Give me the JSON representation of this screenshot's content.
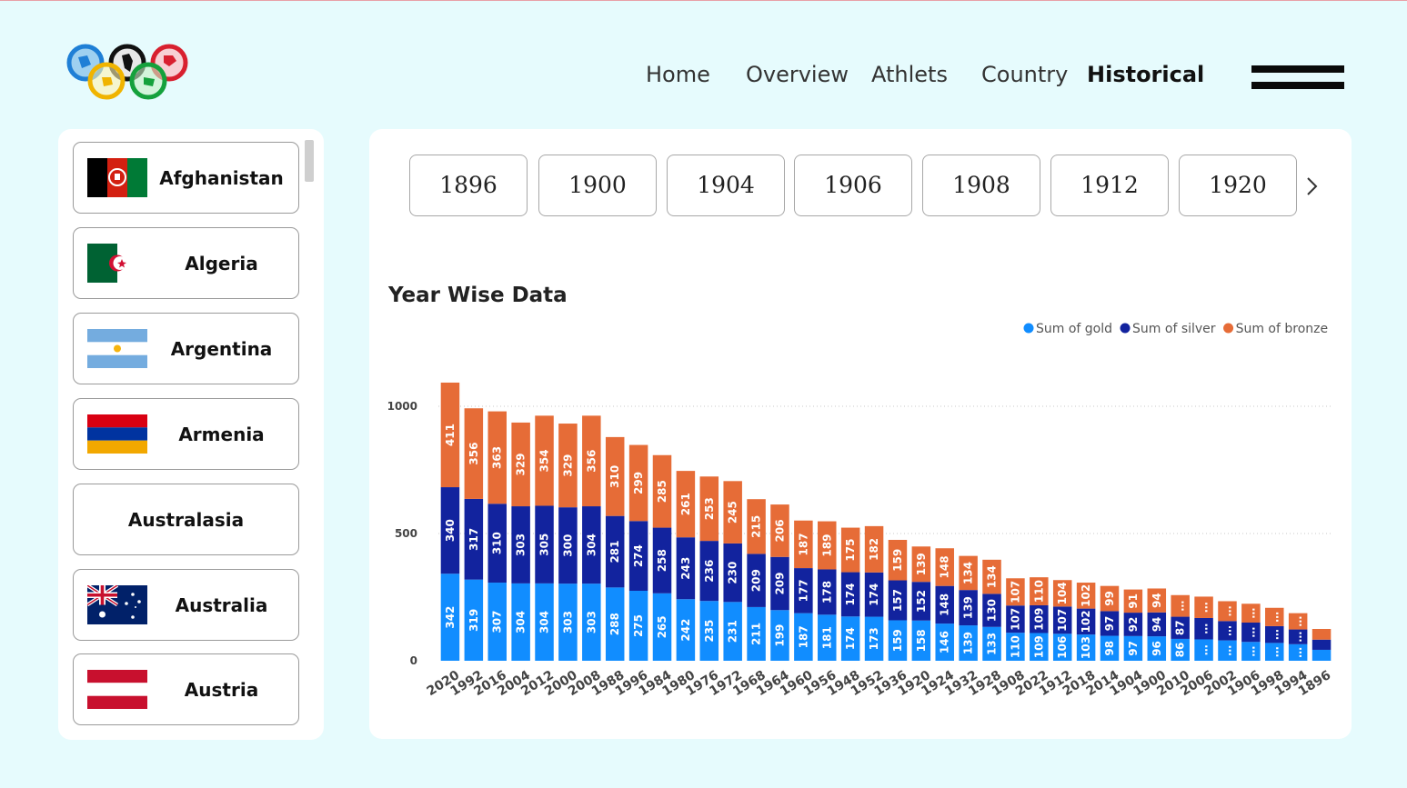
{
  "header": {
    "nav": [
      {
        "label": "Home",
        "active": false
      },
      {
        "label": "Overview",
        "active": false
      },
      {
        "label": "Athlets",
        "active": false
      },
      {
        "label": "Country",
        "active": false
      },
      {
        "label": "Historical",
        "active": true
      }
    ]
  },
  "countries": [
    {
      "name": "Afghanistan",
      "flag": "afghanistan-flag"
    },
    {
      "name": "Algeria",
      "flag": "algeria-flag"
    },
    {
      "name": "Argentina",
      "flag": "argentina-flag"
    },
    {
      "name": "Armenia",
      "flag": "armenia-flag"
    },
    {
      "name": "Australasia",
      "flag": ""
    },
    {
      "name": "Australia",
      "flag": "australia-flag"
    },
    {
      "name": "Austria",
      "flag": "austria-flag"
    }
  ],
  "year_slicer": [
    "1896",
    "1900",
    "1904",
    "1906",
    "1908",
    "1912",
    "1920"
  ],
  "chart_data": {
    "type": "bar",
    "stacked": true,
    "title": "Year Wise Data",
    "legend_position": "top-right",
    "categories": [
      "2020",
      "1992",
      "2016",
      "2004",
      "2012",
      "2000",
      "2008",
      "1988",
      "1996",
      "1984",
      "1980",
      "1976",
      "1972",
      "1968",
      "1964",
      "1960",
      "1956",
      "1948",
      "1952",
      "1936",
      "1920",
      "1924",
      "1932",
      "1928",
      "1908",
      "2022",
      "1912",
      "2018",
      "2014",
      "1904",
      "1900",
      "2010",
      "2006",
      "2002",
      "1906",
      "1998",
      "1994",
      "1896"
    ],
    "series": [
      {
        "name": "Sum of gold",
        "color": "#118dff",
        "values": [
          342,
          319,
          307,
          304,
          304,
          303,
          303,
          288,
          275,
          265,
          242,
          235,
          231,
          211,
          199,
          187,
          181,
          174,
          173,
          159,
          158,
          146,
          139,
          133,
          110,
          109,
          106,
          103,
          98,
          97,
          96,
          86,
          84,
          80,
          74,
          70,
          65,
          43
        ]
      },
      {
        "name": "Sum of silver",
        "color": "#12239e",
        "values": [
          340,
          317,
          310,
          303,
          305,
          300,
          304,
          281,
          274,
          258,
          243,
          236,
          230,
          209,
          209,
          177,
          178,
          174,
          174,
          157,
          152,
          148,
          139,
          130,
          107,
          109,
          107,
          102,
          97,
          92,
          94,
          87,
          84,
          76,
          76,
          66,
          58,
          40
        ]
      },
      {
        "name": "Sum of bronze",
        "color": "#e66c37",
        "values": [
          411,
          356,
          363,
          329,
          354,
          329,
          356,
          310,
          299,
          285,
          261,
          253,
          245,
          215,
          206,
          187,
          189,
          175,
          182,
          159,
          139,
          148,
          134,
          134,
          107,
          110,
          104,
          102,
          99,
          91,
          94,
          85,
          84,
          78,
          74,
          72,
          64,
          42
        ]
      }
    ],
    "hidden_label_text": "…",
    "yticks": [
      0,
      500,
      1000
    ],
    "ylim": [
      0,
      1100
    ],
    "grid": true
  }
}
